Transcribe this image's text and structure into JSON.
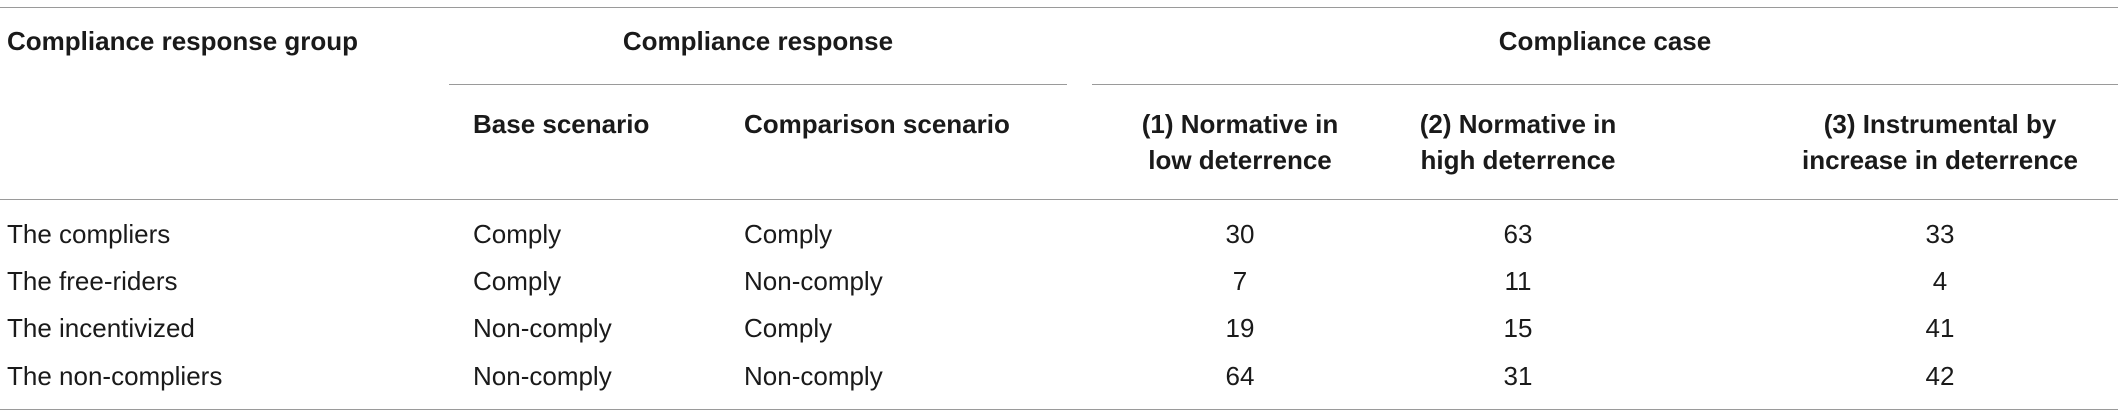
{
  "table": {
    "headers": {
      "group": "Compliance response group",
      "response": "Compliance response",
      "case": "Compliance case",
      "sub": [
        "Base scenario",
        "Comparison scenario",
        "(1) Normative in low deterrence",
        "(2) Normative in high deterrence",
        "(3) Instrumental by increase in deterrence"
      ]
    },
    "rows": [
      [
        "The compliers",
        "Comply",
        "Comply",
        30,
        63,
        33
      ],
      [
        "The free-riders",
        "Comply",
        "Non-comply",
        7,
        11,
        4
      ],
      [
        "The incentivized",
        "Non-comply",
        "Comply",
        19,
        15,
        41
      ],
      [
        "The non-compliers",
        "Non-comply",
        "Non-comply",
        64,
        31,
        42
      ]
    ]
  }
}
